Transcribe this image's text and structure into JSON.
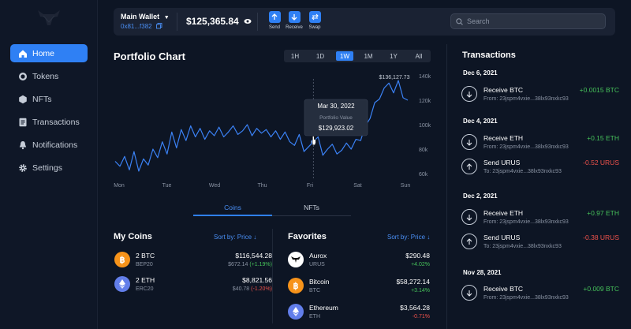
{
  "sidebar": {
    "items": [
      {
        "label": "Home",
        "icon": "home-icon",
        "active": true
      },
      {
        "label": "Tokens",
        "icon": "coin-icon"
      },
      {
        "label": "NFTs",
        "icon": "nft-icon"
      },
      {
        "label": "Transactions",
        "icon": "receipt-icon"
      },
      {
        "label": "Notifications",
        "icon": "bell-icon"
      },
      {
        "label": "Settings",
        "icon": "gear-icon"
      }
    ]
  },
  "header": {
    "wallet_name": "Main Wallet",
    "wallet_address": "0x81...f382",
    "balance": "$125,365.84",
    "actions": [
      {
        "label": "Send",
        "icon": "arrow-up-icon"
      },
      {
        "label": "Receive",
        "icon": "arrow-down-icon"
      },
      {
        "label": "Swap",
        "icon": "swap-icon"
      }
    ],
    "search_placeholder": "Search"
  },
  "portfolio": {
    "title": "Portfolio Chart",
    "ranges": [
      "1H",
      "1D",
      "1W",
      "1M",
      "1Y",
      "All"
    ],
    "active_range": "1W",
    "tooltip": {
      "date": "Mar 30, 2022",
      "label": "Portfolio Value",
      "value": "$129,923.02"
    },
    "peak_label": "$136,127.73"
  },
  "chart_data": {
    "type": "line",
    "x_labels": [
      "Mon",
      "Tue",
      "Wed",
      "Thu",
      "Fri",
      "Sat",
      "Sun"
    ],
    "y_ticks": [
      "140k",
      "120k",
      "100k",
      "80k",
      "60k"
    ],
    "y_values": [
      140000,
      120000,
      100000,
      80000,
      60000
    ],
    "ylim": [
      60000,
      140000
    ],
    "line_color": "#3b82f6",
    "grid": false,
    "series": [
      {
        "values": [
          70000,
          66000,
          74000,
          63000,
          78000,
          62000,
          72000,
          67000,
          80000,
          73000,
          86000,
          76000,
          94000,
          81000,
          96000,
          87000,
          99000,
          90000,
          97000,
          88000,
          95000,
          91000,
          98000,
          90000,
          94000,
          99000,
          92000,
          95000,
          100000,
          91000,
          97000,
          93000,
          96000,
          90000,
          95000,
          88000,
          94000,
          86000,
          83000,
          92000,
          78000,
          82000,
          86000,
          90000,
          75000,
          80000,
          84000,
          76000,
          79000,
          85000,
          80000,
          88000,
          87000,
          99000,
          105000,
          118000,
          121000,
          130000,
          134000,
          126000,
          136127,
          122000,
          120000
        ]
      }
    ]
  },
  "detail_tabs": {
    "coins": "Coins",
    "nfts": "NFTs"
  },
  "my_coins": {
    "title": "My Coins",
    "sort": "Sort by: Price",
    "items": [
      {
        "name": "2 BTC",
        "network": "BEP20",
        "value": "$116,544.28",
        "price": "$672.14",
        "change": "(+1.19%)",
        "color": "#f7931a",
        "icon": "bitcoin-icon"
      },
      {
        "name": "2 ETH",
        "network": "ERC20",
        "value": "$8,821.56",
        "price": "$40.78",
        "change": "(-1.20%)",
        "color": "#627eea",
        "icon": "ethereum-icon"
      }
    ]
  },
  "favorites": {
    "title": "Favorites",
    "sort": "Sort by: Price",
    "items": [
      {
        "name": "Aurox",
        "ticker": "URUS",
        "value": "$290.48",
        "change": "+4.02%",
        "color": "#ffffff",
        "icon": "aurox-icon"
      },
      {
        "name": "Bitcoin",
        "ticker": "BTC",
        "value": "$58,272.14",
        "change": "+3.14%",
        "color": "#f7931a",
        "icon": "bitcoin-icon"
      },
      {
        "name": "Ethereum",
        "ticker": "ETH",
        "value": "$3,564.28",
        "change": "-0.71%",
        "color": "#627eea",
        "icon": "ethereum-icon"
      }
    ]
  },
  "transactions": {
    "title": "Transactions",
    "groups": [
      {
        "date": "Dec 6, 2021",
        "items": [
          {
            "type": "Receive BTC",
            "addr": "From: 23jspm4vxie...38lx93nxkc93",
            "amount": "+0.0015 BTC",
            "dir": "in"
          }
        ]
      },
      {
        "date": "Dec 4, 2021",
        "items": [
          {
            "type": "Receive ETH",
            "addr": "From: 23jspm4vxie...38lx93nxkc93",
            "amount": "+0.15 ETH",
            "dir": "in"
          },
          {
            "type": "Send URUS",
            "addr": "To: 23jspm4vxie...38lx93nxkc93",
            "amount": "-0.52 URUS",
            "dir": "out"
          }
        ]
      },
      {
        "date": "Dec 2, 2021",
        "items": [
          {
            "type": "Receive ETH",
            "addr": "From: 23jspm4vxie...38lx93nxkc93",
            "amount": "+0.97 ETH",
            "dir": "in"
          },
          {
            "type": "Send URUS",
            "addr": "To: 23jspm4vxie...38lx93nxkc93",
            "amount": "-0.38 URUS",
            "dir": "out"
          }
        ]
      },
      {
        "date": "Nov 28, 2021",
        "items": [
          {
            "type": "Receive BTC",
            "addr": "From: 23jspm4vxie...38lx93nxkc93",
            "amount": "+0.009 BTC",
            "dir": "in"
          }
        ]
      }
    ]
  }
}
